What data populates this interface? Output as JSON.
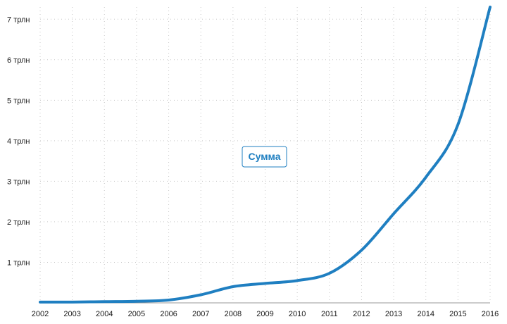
{
  "chart_data": {
    "type": "line",
    "title": "",
    "xlabel": "",
    "ylabel": "",
    "x": [
      2002,
      2003,
      2004,
      2005,
      2006,
      2007,
      2008,
      2009,
      2010,
      2011,
      2012,
      2013,
      2014,
      2015,
      2016
    ],
    "x_tick_labels": [
      "2002",
      "2003",
      "2004",
      "2005",
      "2006",
      "2007",
      "2008",
      "2009",
      "2010",
      "2011",
      "2012",
      "2013",
      "2014",
      "2015",
      "2016"
    ],
    "xlim": [
      2002,
      2016
    ],
    "y_ticks": [
      1,
      2,
      3,
      4,
      5,
      6,
      7
    ],
    "y_tick_labels": [
      "1 трлн",
      "2 трлн",
      "3 трлн",
      "4 трлн",
      "5 трлн",
      "6 трлн",
      "7 трлн"
    ],
    "y_unit": "трлн",
    "ylim": [
      0,
      7.3
    ],
    "grid": true,
    "legend_position": "center",
    "series": [
      {
        "name": "Сумма",
        "color": "#1f7fc1",
        "values": [
          0.02,
          0.02,
          0.03,
          0.04,
          0.07,
          0.2,
          0.4,
          0.48,
          0.55,
          0.73,
          1.3,
          2.2,
          3.1,
          4.4,
          7.3
        ]
      }
    ]
  }
}
